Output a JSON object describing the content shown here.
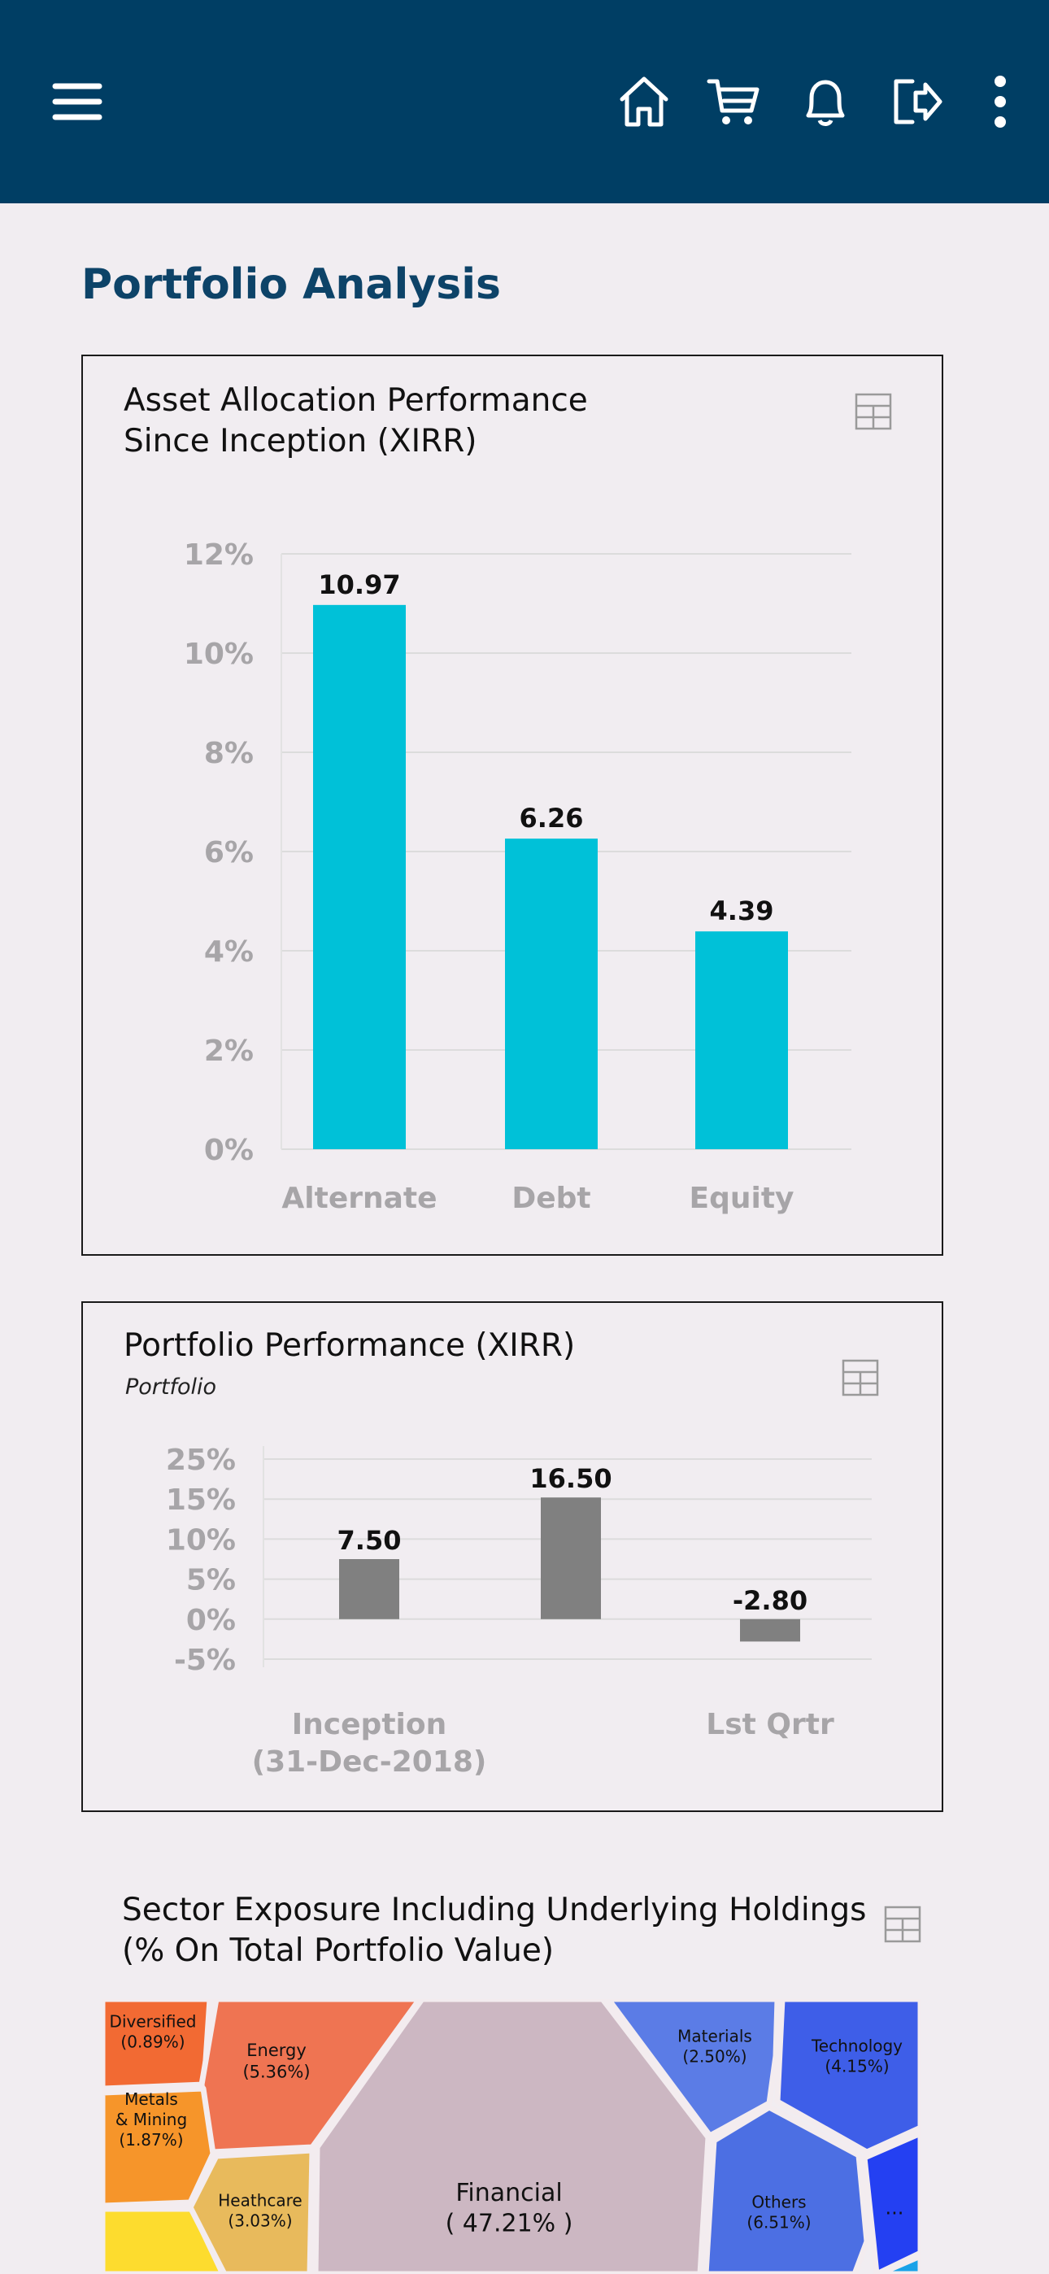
{
  "header": {
    "menu_icon": "hamburger-menu-icon",
    "icons": [
      "home-icon",
      "cart-icon",
      "bell-icon",
      "logout-icon",
      "more-vertical-icon"
    ]
  },
  "page_title": "Portfolio Analysis",
  "asset_card": {
    "title_line1": "Asset Allocation Performance",
    "title_line2": "Since Inception (XIRR)",
    "table_icon": "table-icon"
  },
  "portfolio_card": {
    "title": "Portfolio Performance (XIRR)",
    "subtitle": "Portfolio",
    "table_icon": "table-icon"
  },
  "sector": {
    "title_line1": "Sector Exposure Including Underlying Holdings",
    "title_line2": "(% On Total Portfolio Value)",
    "table_icon": "table-icon"
  },
  "chart_data": [
    {
      "type": "bar",
      "categories": [
        "Alternate",
        "Debt",
        "Equity"
      ],
      "values": [
        10.97,
        6.26,
        4.39
      ],
      "data_labels": [
        "10.97",
        "6.26",
        "4.39"
      ],
      "y_ticks": [
        "0%",
        "2%",
        "4%",
        "6%",
        "8%",
        "10%",
        "12%"
      ],
      "ylim": [
        0,
        12
      ],
      "grid": true,
      "color": "#00C1D8"
    },
    {
      "type": "bar",
      "categories": [
        "Inception\n(31-Dec-2018)",
        "",
        "Lst Qrtr"
      ],
      "category_lines": [
        [
          "Inception",
          "(31-Dec-2018)"
        ],
        [],
        [
          "Lst Qrtr"
        ]
      ],
      "values": [
        7.5,
        16.5,
        -2.8
      ],
      "data_labels": [
        "7.50",
        "16.50",
        "-2.80"
      ],
      "y_ticks": [
        "-5%",
        "0%",
        "5%",
        "10%",
        "15%",
        "25%"
      ],
      "ylim": [
        -5,
        25
      ],
      "grid": true,
      "color": "#808080"
    },
    {
      "type": "treemap",
      "items": [
        {
          "name": "Diversified",
          "value_label": "(0.89%)",
          "value": 0.89,
          "color": "#F26A33"
        },
        {
          "name": "Energy",
          "value_label": "(5.36%)",
          "value": 5.36,
          "color": "#EF7452"
        },
        {
          "name": "Metals\n& Mining",
          "value_label": "(1.87%)",
          "value": 1.87,
          "color": "#F6952A"
        },
        {
          "name": "Heathcare",
          "value_label": "(3.03%)",
          "value": 3.03,
          "color": "#E8BA5C"
        },
        {
          "name": "Financial",
          "value_label": "( 47.21% )",
          "value": 47.21,
          "color": "#CCB7C2"
        },
        {
          "name": "Materials",
          "value_label": "(2.50%)",
          "value": 2.5,
          "color": "#5B7CE6"
        },
        {
          "name": "Technology",
          "value_label": "(4.15%)",
          "value": 4.15,
          "color": "#3E5EE8"
        },
        {
          "name": "Others",
          "value_label": "(6.51%)",
          "value": 6.51,
          "color": "#4C6FE3"
        },
        {
          "name": "...",
          "value_label": "",
          "value": null,
          "color": "#2440F2"
        }
      ]
    }
  ]
}
